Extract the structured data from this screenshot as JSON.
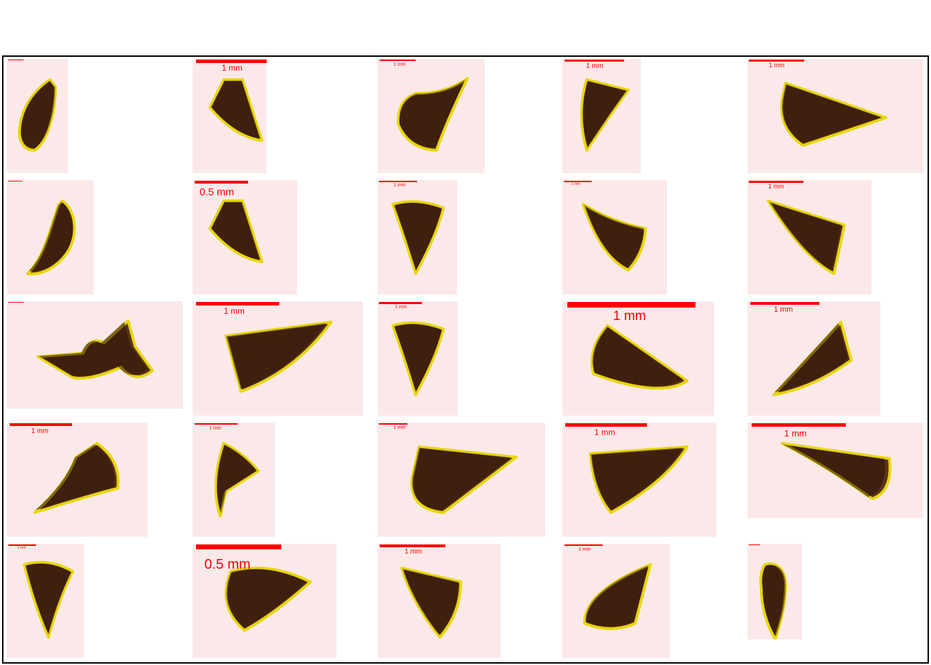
{
  "gallery": {
    "rows": [
      [
        {
          "label": ""
        },
        {
          "label": "1 mm"
        },
        {
          "label": "1 mm"
        },
        {
          "label": "1 mm"
        },
        {
          "label": "1 mm"
        }
      ],
      [
        {
          "label": "1 mm"
        },
        {
          "label": "0.5 mm"
        },
        {
          "label": "1 mm"
        },
        {
          "label": "1 mm"
        },
        {
          "label": "1 mm"
        }
      ],
      [
        {
          "label": "1 mm"
        },
        {
          "label": "1 mm"
        },
        {
          "label": "1 mm"
        },
        {
          "label": "1 mm"
        },
        {
          "label": "1 mm"
        }
      ],
      [
        {
          "label": "1 mm"
        },
        {
          "label": "1 mm"
        },
        {
          "label": "1 mm"
        },
        {
          "label": "1 mm"
        },
        {
          "label": "1 mm"
        }
      ],
      [
        {
          "label": "1 mm"
        },
        {
          "label": "0.5 mm"
        },
        {
          "label": "1 mm"
        },
        {
          "label": "1 mm"
        },
        {
          "label": ""
        }
      ]
    ]
  },
  "colors": {
    "background": "#ffffff",
    "tile": "#fbe9ea",
    "scale_bar": "#ff0000",
    "specimen_dark": "#2a0f08",
    "specimen_mid": "#5a3316",
    "specimen_halo": "#e8d60a"
  }
}
